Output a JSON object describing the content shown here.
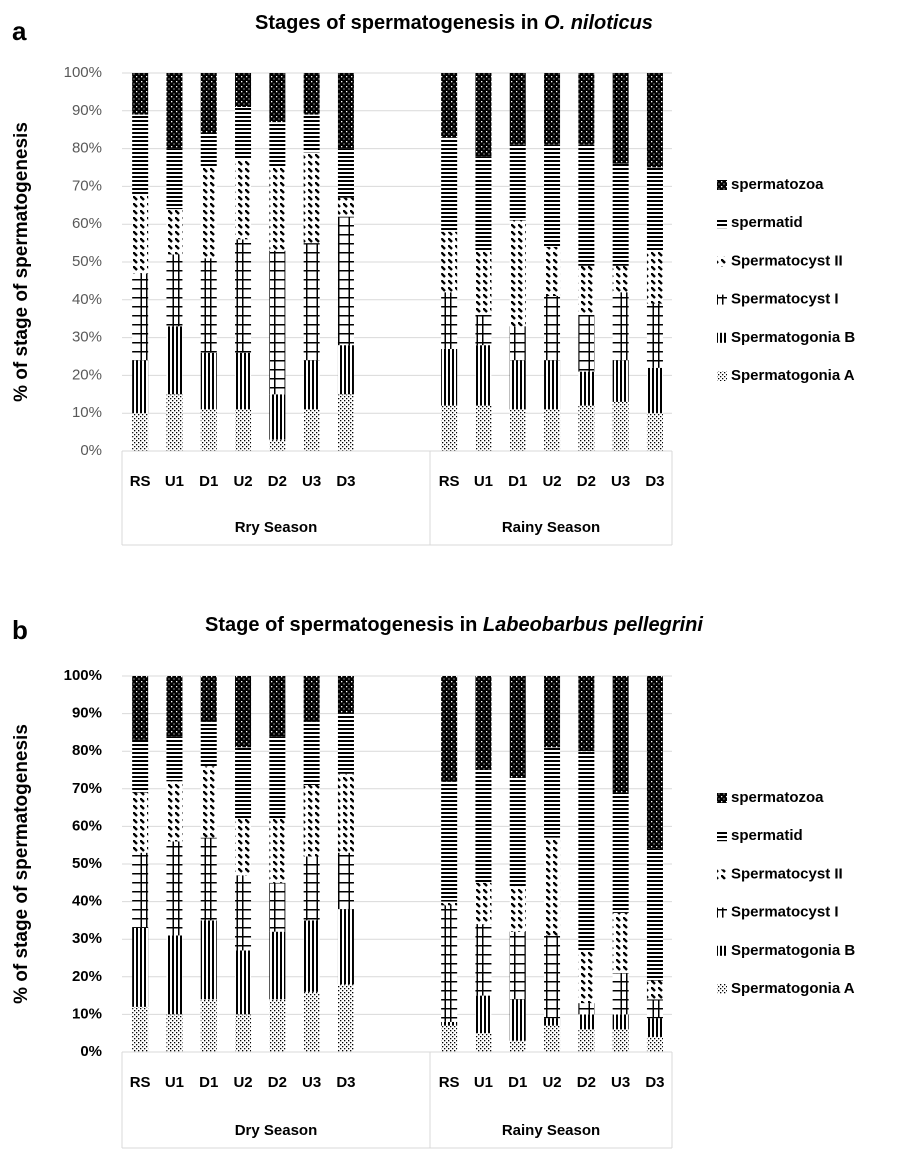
{
  "chart_data": [
    {
      "type": "stacked_bar",
      "panel": "a",
      "title": "Stages of spermatogenesis in ",
      "title_italic": "O. niloticus",
      "y_label": "% of stage of spermatogenesis",
      "groups": [
        {
          "label": "Rry Season",
          "categories": [
            "RS",
            "U1",
            "D1",
            "U2",
            "D2",
            "U3",
            "D3"
          ]
        },
        {
          "label": "Rainy Season",
          "categories": [
            "RS",
            "U1",
            "D1",
            "U2",
            "D2",
            "U3",
            "D3"
          ]
        }
      ],
      "ylim": [
        0,
        100
      ],
      "yticks": [
        {
          "value": 0,
          "label": "0%"
        },
        {
          "value": 10,
          "label": "10%"
        },
        {
          "value": 20,
          "label": "20%"
        },
        {
          "value": 30,
          "label": "30%"
        },
        {
          "value": 40,
          "label": "40%"
        },
        {
          "value": 50,
          "label": "50%"
        },
        {
          "value": 60,
          "label": "60%"
        },
        {
          "value": 70,
          "label": "70%"
        },
        {
          "value": 80,
          "label": "80%"
        },
        {
          "value": 90,
          "label": "90%"
        },
        {
          "value": 100,
          "label": "100%"
        }
      ],
      "grid": true,
      "series": [
        {
          "name": "Spermatogonia A",
          "color": "#000000",
          "pattern": "checker",
          "values": [
            10,
            15,
            11,
            11,
            3,
            11,
            15,
            12,
            12,
            11,
            11,
            12,
            13,
            10
          ]
        },
        {
          "name": "Spermatogonia B",
          "color": "#000000",
          "pattern": "vertical",
          "values": [
            14,
            18,
            15,
            15,
            12,
            13,
            13,
            15,
            16,
            13,
            13,
            9,
            11,
            12
          ]
        },
        {
          "name": "Spermatocyst I",
          "color": "#000000",
          "pattern": "ladder",
          "values": [
            23,
            19,
            25,
            30,
            38,
            31,
            34,
            15,
            8,
            9,
            17,
            15,
            18,
            17
          ]
        },
        {
          "name": "Spermatocyst II",
          "color": "#000000",
          "pattern": "diagonal",
          "values": [
            21,
            12,
            24,
            21,
            22,
            24,
            5,
            16,
            17,
            28,
            13,
            13,
            7,
            14
          ]
        },
        {
          "name": "spermatid",
          "color": "#000000",
          "pattern": "horizontal",
          "values": [
            21,
            16,
            9,
            14,
            12,
            10,
            13,
            25,
            25,
            20,
            27,
            32,
            27,
            22
          ]
        },
        {
          "name": "spermatozoa",
          "color": "#000000",
          "pattern": "dots",
          "values": [
            11,
            20,
            16,
            9,
            13,
            11,
            20,
            17,
            22,
            19,
            19,
            19,
            24,
            25
          ]
        }
      ]
    },
    {
      "type": "stacked_bar",
      "panel": "b",
      "title": "Stage of spermatogenesis in ",
      "title_italic": "Labeobarbus pellegrini",
      "y_label": "% of stage of spermatogenesis",
      "groups": [
        {
          "label": "Dry Season",
          "categories": [
            "RS",
            "U1",
            "D1",
            "U2",
            "D2",
            "U3",
            "D3"
          ]
        },
        {
          "label": "Rainy Season",
          "categories": [
            "RS",
            "U1",
            "D1",
            "U2",
            "D2",
            "U3",
            "D3"
          ]
        }
      ],
      "ylim": [
        0,
        100
      ],
      "yticks": [
        {
          "value": 0,
          "label": "0%"
        },
        {
          "value": 10,
          "label": "10%"
        },
        {
          "value": 20,
          "label": "20%"
        },
        {
          "value": 30,
          "label": "30%"
        },
        {
          "value": 40,
          "label": "40%"
        },
        {
          "value": 50,
          "label": "50%"
        },
        {
          "value": 60,
          "label": "60%"
        },
        {
          "value": 70,
          "label": "70%"
        },
        {
          "value": 80,
          "label": "80%"
        },
        {
          "value": 90,
          "label": "90%"
        },
        {
          "value": 100,
          "label": "100%"
        }
      ],
      "grid": true,
      "series": [
        {
          "name": "Spermatogonia A",
          "color": "#000000",
          "pattern": "checker",
          "values": [
            12,
            10,
            14,
            10,
            14,
            16,
            18,
            7,
            5,
            3,
            7,
            6,
            6,
            4
          ]
        },
        {
          "name": "Spermatogonia B",
          "color": "#000000",
          "pattern": "vertical",
          "values": [
            21,
            21,
            21,
            17,
            18,
            19,
            20,
            1,
            10,
            11,
            2,
            4,
            4,
            5
          ]
        },
        {
          "name": "Spermatocyst I",
          "color": "#000000",
          "pattern": "ladder",
          "values": [
            20,
            25,
            22,
            20,
            13,
            17,
            15,
            31,
            19,
            18,
            22,
            3,
            11,
            5
          ]
        },
        {
          "name": "Spermatocyst II",
          "color": "#000000",
          "pattern": "diagonal",
          "values": [
            16,
            16,
            19,
            15,
            17,
            19,
            21,
            1,
            11,
            12,
            26,
            14,
            16,
            5
          ]
        },
        {
          "name": "spermatid",
          "color": "#000000",
          "pattern": "horizontal",
          "values": [
            14,
            12,
            12,
            19,
            22,
            17,
            16,
            32,
            30,
            29,
            24,
            53,
            32,
            35
          ]
        },
        {
          "name": "spermatozoa",
          "color": "#000000",
          "pattern": "dots",
          "values": [
            17,
            16,
            12,
            19,
            16,
            12,
            10,
            28,
            25,
            27,
            19,
            20,
            31,
            46
          ]
        }
      ]
    }
  ]
}
